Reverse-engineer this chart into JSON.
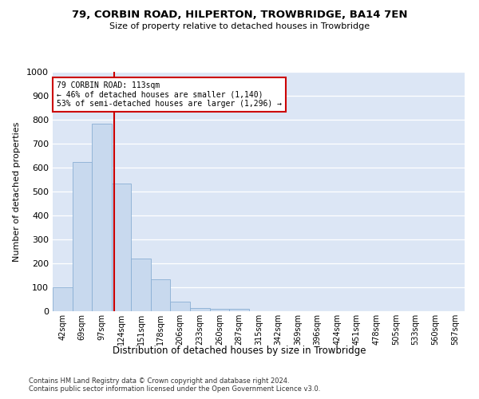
{
  "title": "79, CORBIN ROAD, HILPERTON, TROWBRIDGE, BA14 7EN",
  "subtitle": "Size of property relative to detached houses in Trowbridge",
  "xlabel": "Distribution of detached houses by size in Trowbridge",
  "ylabel": "Number of detached properties",
  "bin_labels": [
    "42sqm",
    "69sqm",
    "97sqm",
    "124sqm",
    "151sqm",
    "178sqm",
    "206sqm",
    "233sqm",
    "260sqm",
    "287sqm",
    "315sqm",
    "342sqm",
    "369sqm",
    "396sqm",
    "424sqm",
    "451sqm",
    "478sqm",
    "505sqm",
    "533sqm",
    "560sqm",
    "587sqm"
  ],
  "bar_values": [
    100,
    625,
    785,
    535,
    220,
    135,
    40,
    15,
    10,
    10,
    0,
    0,
    0,
    0,
    0,
    0,
    0,
    0,
    0,
    0,
    0
  ],
  "bar_color": "#c8d9ee",
  "bar_edge_color": "#8aafd4",
  "vline_x": 2.62,
  "vline_color": "#cc0000",
  "annotation_text": "79 CORBIN ROAD: 113sqm\n← 46% of detached houses are smaller (1,140)\n53% of semi-detached houses are larger (1,296) →",
  "annotation_box_color": "#ffffff",
  "annotation_box_edge": "#cc0000",
  "ylim": [
    0,
    1000
  ],
  "yticks": [
    0,
    100,
    200,
    300,
    400,
    500,
    600,
    700,
    800,
    900,
    1000
  ],
  "background_color": "#dce6f5",
  "footnote1": "Contains HM Land Registry data © Crown copyright and database right 2024.",
  "footnote2": "Contains public sector information licensed under the Open Government Licence v3.0."
}
